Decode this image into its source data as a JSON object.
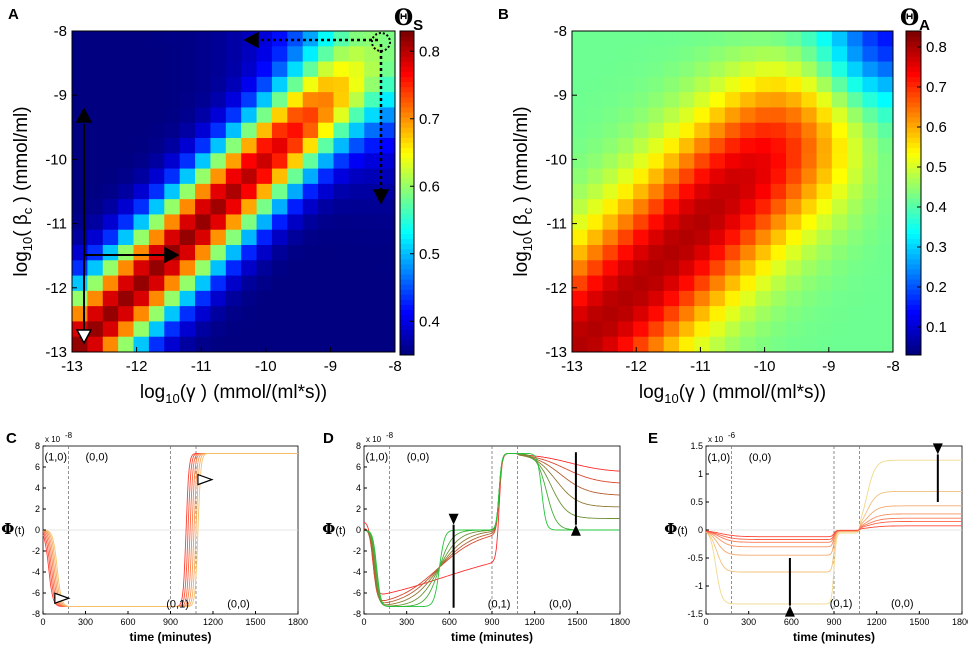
{
  "figure": {
    "panels": [
      "A",
      "B",
      "C",
      "D",
      "E"
    ]
  },
  "chart_data": [
    {
      "id": "A",
      "type": "heatmap",
      "title": "ΘS",
      "title_symbol": "Θ",
      "title_sub": "S",
      "xlabel_prefix": "log",
      "xlabel_base": "10",
      "xlabel_var": "(γ )",
      "xlabel_unit": "(mmol/(ml*s))",
      "ylabel_prefix": "log",
      "ylabel_base": "10",
      "ylabel_var": "( β",
      "ylabel_sub": "c",
      "ylabel_unit": " )  (mmol/ml)",
      "xlim": [
        -13,
        -8
      ],
      "ylim": [
        -13,
        -8
      ],
      "xticks": [
        -13,
        -12,
        -11,
        -10,
        -9,
        -8
      ],
      "xtick_labels": [
        "-13",
        "-12",
        "-11",
        "-10",
        "-9",
        "-8"
      ],
      "yticks": [
        -8,
        -9,
        -10,
        -11,
        -12,
        -13
      ],
      "ytick_labels": [
        "-8",
        "-9",
        "-10",
        "-11",
        "-12",
        "-13"
      ],
      "colorbar_range": [
        0.35,
        0.83
      ],
      "colorbar_ticks": [
        0.4,
        0.5,
        0.6,
        0.7,
        0.8
      ],
      "colorbar_tick_labels": [
        "0.4",
        "0.5",
        "0.6",
        "0.7",
        "0.8"
      ],
      "grid_size": 21,
      "ridge_value": 0.82,
      "far_value": 0.35,
      "ridge_width": 0.9,
      "corner_value": 0.6
    },
    {
      "id": "B",
      "type": "heatmap",
      "title": "ΘA",
      "title_symbol": "Θ",
      "title_sub": "A",
      "xlabel_prefix": "log",
      "xlabel_base": "10",
      "xlabel_var": "(γ )",
      "xlabel_unit": "(mmol/(ml*s))",
      "ylabel_prefix": "log",
      "ylabel_base": "10",
      "ylabel_var": "( β",
      "ylabel_sub": "c",
      "ylabel_unit": " )  (mmol/ml)",
      "xlim": [
        -13,
        -8
      ],
      "ylim": [
        -13,
        -8
      ],
      "xticks": [
        -13,
        -12,
        -11,
        -10,
        -9,
        -8
      ],
      "xtick_labels": [
        "-13",
        "-12",
        "-11",
        "-10",
        "-9",
        "-8"
      ],
      "yticks": [
        -8,
        -9,
        -10,
        -11,
        -12,
        -13
      ],
      "ytick_labels": [
        "-8",
        "-9",
        "-10",
        "-11",
        "-12",
        "-13"
      ],
      "colorbar_range": [
        0.03,
        0.84
      ],
      "colorbar_ticks": [
        0.1,
        0.2,
        0.3,
        0.4,
        0.5,
        0.6,
        0.7,
        0.8
      ],
      "colorbar_tick_labels": [
        "0.1",
        "0.2",
        "0.3",
        "0.4",
        "0.5",
        "0.6",
        "0.7",
        "0.8"
      ],
      "grid_size": 21,
      "ridge_value": 0.8,
      "far_value": 0.42,
      "ridge_width": 1.6,
      "corner_value": 0.05
    },
    {
      "id": "C",
      "type": "line",
      "ylabel": "Φ(t)",
      "ylabel_symbol": "Φ",
      "ylabel_rest": "(t)",
      "xlabel": "time (minutes)",
      "xlim": [
        0,
        1800
      ],
      "ylim": [
        -8,
        8
      ],
      "y_exponent": "x 10",
      "y_exponent_power": "-8",
      "xticks": [
        0,
        300,
        600,
        900,
        1200,
        1500,
        1800
      ],
      "xtick_labels": [
        "0",
        "300",
        "600",
        "900",
        "1200",
        "1500",
        "1800"
      ],
      "yticks": [
        8,
        6,
        4,
        2,
        0,
        -2,
        -4,
        -6,
        -8
      ],
      "ytick_labels": [
        "8",
        "6",
        "4",
        "2",
        "0",
        "-2",
        "-4",
        "-6",
        "-8"
      ],
      "phase_boundaries": [
        180,
        900,
        1080
      ],
      "state_labels": [
        {
          "text": "(1,0)",
          "x": 90,
          "y": 7.0
        },
        {
          "text": "(0,0)",
          "x": 380,
          "y": 7.0
        },
        {
          "text": "(0,1)",
          "x": 950,
          "y": -7.0
        },
        {
          "text": "(0,0)",
          "x": 1380,
          "y": -7.0
        }
      ],
      "levels": {
        "y1": -7.3,
        "y2": -7.3,
        "y3": 7.3,
        "y4": 7.3
      },
      "series_count": 7
    },
    {
      "id": "D",
      "type": "line",
      "ylabel": "Φ(t)",
      "ylabel_symbol": "Φ",
      "ylabel_rest": "(t)",
      "xlabel": "time (minutes)",
      "xlim": [
        0,
        1800
      ],
      "ylim": [
        -8,
        8
      ],
      "y_exponent": "x 10",
      "y_exponent_power": "-8",
      "xticks": [
        0,
        300,
        600,
        900,
        1200,
        1500,
        1800
      ],
      "xtick_labels": [
        "0",
        "300",
        "600",
        "900",
        "1200",
        "1500",
        "1800"
      ],
      "yticks": [
        8,
        6,
        4,
        2,
        0,
        -2,
        -4,
        -6,
        -8
      ],
      "ytick_labels": [
        "8",
        "6",
        "4",
        "2",
        "0",
        "-2",
        "-4",
        "-6",
        "-8"
      ],
      "phase_boundaries": [
        180,
        900,
        1080
      ],
      "state_labels": [
        {
          "text": "(1,0)",
          "x": 90,
          "y": 7.0
        },
        {
          "text": "(0,0)",
          "x": 380,
          "y": 7.0
        },
        {
          "text": "(0,1)",
          "x": 950,
          "y": -7.0
        },
        {
          "text": "(0,0)",
          "x": 1380,
          "y": -7.0
        }
      ],
      "series_count": 7
    },
    {
      "id": "E",
      "type": "line",
      "ylabel": "Φ(t)",
      "ylabel_symbol": "Φ",
      "ylabel_rest": "(t)",
      "xlabel": "time (minutes)",
      "xlim": [
        0,
        1800
      ],
      "ylim": [
        -1.5,
        1.5
      ],
      "y_exponent": "x 10",
      "y_exponent_power": "-6",
      "xticks": [
        0,
        300,
        600,
        900,
        1200,
        1500,
        1800
      ],
      "xtick_labels": [
        "0",
        "300",
        "600",
        "900",
        "1200",
        "1500",
        "1800"
      ],
      "yticks": [
        1.5,
        1,
        0.5,
        0,
        -0.5,
        -1,
        -1.5
      ],
      "ytick_labels": [
        "1.5",
        "1",
        "0.5",
        "0",
        "-0.5",
        "-1",
        "-1.5"
      ],
      "phase_boundaries": [
        180,
        900,
        1080
      ],
      "state_labels": [
        {
          "text": "(1,0)",
          "x": 90,
          "y": 1.3
        },
        {
          "text": "(0,0)",
          "x": 380,
          "y": 1.3
        },
        {
          "text": "(0,1)",
          "x": 950,
          "y": -1.3
        },
        {
          "text": "(0,0)",
          "x": 1380,
          "y": -1.3
        }
      ],
      "y1_levels": [
        -1.32,
        -0.75,
        -0.45,
        -0.3,
        -0.22,
        -0.17,
        -0.12
      ],
      "y4_levels": [
        1.3,
        0.72,
        0.45,
        0.3,
        0.22,
        0.16,
        0.08
      ],
      "series_count": 7
    }
  ]
}
